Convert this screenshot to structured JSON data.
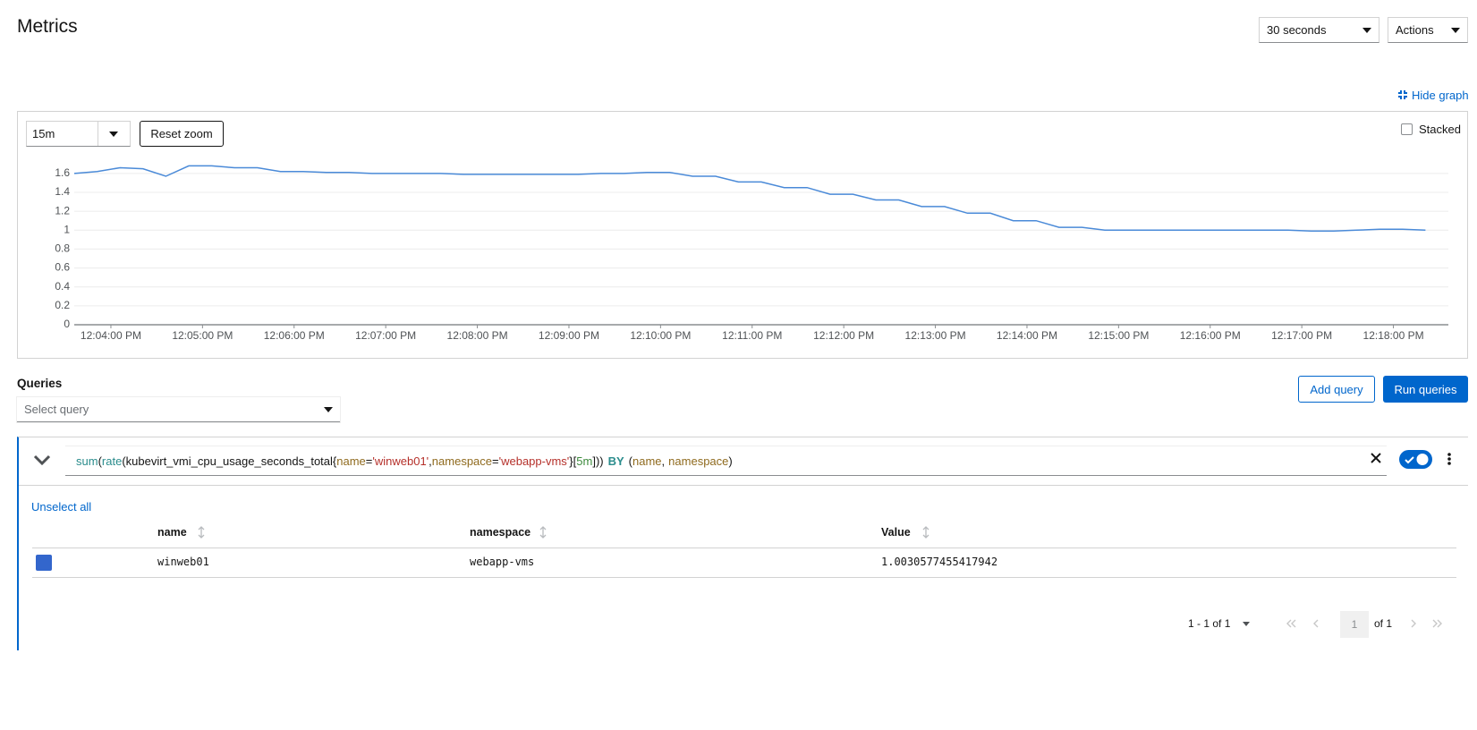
{
  "header": {
    "title": "Metrics",
    "refresh_interval": "30 seconds",
    "actions": "Actions"
  },
  "hide_graph": "Hide graph",
  "graph": {
    "time_range": "15m",
    "reset_zoom": "Reset zoom",
    "stacked": "Stacked"
  },
  "chart_data": {
    "type": "line",
    "x": [
      "12:03:36 PM",
      "12:03:51 PM",
      "12:04:06 PM",
      "12:04:21 PM",
      "12:04:36 PM",
      "12:04:51 PM",
      "12:05:06 PM",
      "12:05:21 PM",
      "12:05:36 PM",
      "12:05:51 PM",
      "12:06:06 PM",
      "12:06:21 PM",
      "12:06:36 PM",
      "12:06:51 PM",
      "12:07:06 PM",
      "12:07:21 PM",
      "12:07:36 PM",
      "12:07:51 PM",
      "12:08:06 PM",
      "12:08:21 PM",
      "12:08:36 PM",
      "12:08:51 PM",
      "12:09:06 PM",
      "12:09:21 PM",
      "12:09:36 PM",
      "12:09:51 PM",
      "12:10:06 PM",
      "12:10:21 PM",
      "12:10:36 PM",
      "12:10:51 PM",
      "12:11:06 PM",
      "12:11:21 PM",
      "12:11:36 PM",
      "12:11:51 PM",
      "12:12:06 PM",
      "12:12:21 PM",
      "12:12:36 PM",
      "12:12:51 PM",
      "12:13:06 PM",
      "12:13:21 PM",
      "12:13:36 PM",
      "12:13:51 PM",
      "12:14:06 PM",
      "12:14:21 PM",
      "12:14:36 PM",
      "12:14:51 PM",
      "12:15:06 PM",
      "12:15:21 PM",
      "12:15:36 PM",
      "12:15:51 PM",
      "12:16:06 PM",
      "12:16:21 PM",
      "12:16:36 PM",
      "12:16:51 PM",
      "12:17:06 PM",
      "12:17:21 PM",
      "12:17:36 PM",
      "12:17:51 PM",
      "12:18:06 PM",
      "12:18:21 PM"
    ],
    "values": [
      1.6,
      1.62,
      1.66,
      1.65,
      1.57,
      1.68,
      1.68,
      1.66,
      1.66,
      1.62,
      1.62,
      1.61,
      1.61,
      1.6,
      1.6,
      1.6,
      1.6,
      1.59,
      1.59,
      1.59,
      1.59,
      1.59,
      1.59,
      1.6,
      1.6,
      1.61,
      1.61,
      1.57,
      1.57,
      1.51,
      1.51,
      1.45,
      1.45,
      1.38,
      1.38,
      1.32,
      1.32,
      1.25,
      1.25,
      1.18,
      1.18,
      1.1,
      1.1,
      1.03,
      1.03,
      1.0,
      1.0,
      1.0,
      1.0,
      1.0,
      1.0,
      1.0,
      1.0,
      1.0,
      0.99,
      0.99,
      1.0,
      1.01,
      1.01,
      1.0
    ],
    "color": "#4a8ad8",
    "xlim": [
      "12:03:36 PM",
      "12:18:36 PM"
    ],
    "xticks": [
      "12:04:00 PM",
      "12:05:00 PM",
      "12:06:00 PM",
      "12:07:00 PM",
      "12:08:00 PM",
      "12:09:00 PM",
      "12:10:00 PM",
      "12:11:00 PM",
      "12:12:00 PM",
      "12:13:00 PM",
      "12:14:00 PM",
      "12:15:00 PM",
      "12:16:00 PM",
      "12:17:00 PM",
      "12:18:00 PM"
    ],
    "ylim": [
      0,
      1.75
    ],
    "yticks": [
      0,
      0.2,
      0.4,
      0.6,
      0.8,
      1,
      1.2,
      1.4,
      1.6
    ],
    "grid": true
  },
  "queries": {
    "title": "Queries",
    "select_query": "Select query",
    "add_query": "Add query",
    "run_queries": "Run queries"
  },
  "query": {
    "tokens": [
      "sum",
      "(",
      "rate",
      "(",
      "kubevirt_vmi_cpu_usage_seconds_total",
      "{",
      "name",
      "=",
      "'winweb01'",
      ",",
      "namespace",
      "=",
      "'webapp-vms'",
      "}",
      "[",
      "5m",
      "]",
      "))",
      "BY",
      "(",
      "name",
      ",",
      "namespace",
      ")"
    ]
  },
  "results": {
    "unselect_all": "Unselect all",
    "columns": [
      "name",
      "namespace",
      "Value"
    ],
    "rows": [
      [
        "winweb01",
        "webapp-vms",
        "1.0030577455417942"
      ]
    ]
  },
  "pagination": {
    "range": "1 - 1 of 1",
    "page": "1",
    "of_pages": "of 1"
  }
}
